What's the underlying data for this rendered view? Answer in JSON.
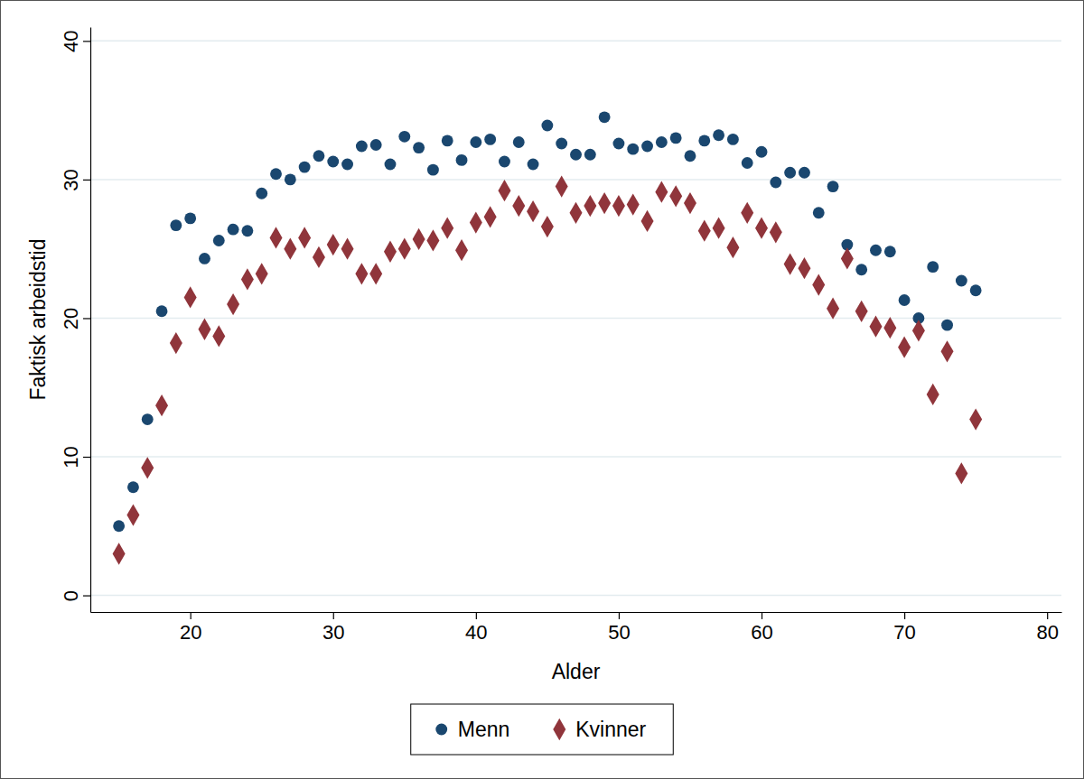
{
  "chart_data": {
    "type": "scatter",
    "x_label": "Alder",
    "y_label": "Faktisk arbeidstid",
    "x": [
      15,
      16,
      17,
      18,
      19,
      20,
      21,
      22,
      23,
      24,
      25,
      26,
      27,
      28,
      29,
      30,
      31,
      32,
      33,
      34,
      35,
      36,
      37,
      38,
      39,
      40,
      41,
      42,
      43,
      44,
      45,
      46,
      47,
      48,
      49,
      50,
      51,
      52,
      53,
      54,
      55,
      56,
      57,
      58,
      59,
      60,
      61,
      62,
      63,
      64,
      65,
      66,
      67,
      68,
      69,
      70,
      71,
      72,
      73,
      74,
      75
    ],
    "series": [
      {
        "name": "Menn",
        "color": "#1a476f",
        "marker": "circle",
        "values": [
          5.0,
          7.8,
          12.7,
          20.5,
          26.7,
          27.2,
          24.3,
          25.6,
          26.4,
          26.3,
          29.0,
          30.4,
          30.0,
          30.9,
          31.7,
          31.3,
          31.1,
          32.4,
          32.5,
          31.1,
          33.1,
          32.3,
          30.7,
          32.8,
          31.4,
          32.7,
          32.9,
          31.3,
          32.7,
          31.1,
          33.9,
          32.6,
          31.8,
          31.8,
          34.5,
          32.6,
          32.2,
          32.4,
          32.7,
          33.0,
          31.7,
          32.8,
          33.2,
          32.9,
          31.2,
          32.0,
          29.8,
          30.5,
          30.5,
          27.6,
          29.5,
          25.3,
          23.5,
          24.9,
          24.8,
          21.3,
          20.0,
          23.7,
          19.5,
          22.7,
          22.0
        ]
      },
      {
        "name": "Kvinner",
        "color": "#90353b",
        "marker": "diamond",
        "values": [
          3.0,
          5.8,
          9.2,
          13.7,
          18.2,
          21.5,
          19.2,
          18.7,
          21.0,
          22.8,
          23.2,
          25.8,
          25.0,
          25.8,
          24.4,
          25.3,
          25.0,
          23.2,
          23.2,
          24.8,
          25.0,
          25.7,
          25.6,
          26.5,
          24.9,
          26.9,
          27.3,
          29.2,
          28.1,
          27.7,
          26.6,
          29.5,
          27.6,
          28.1,
          28.3,
          28.1,
          28.2,
          27.0,
          29.1,
          28.8,
          28.3,
          26.3,
          26.5,
          25.1,
          27.6,
          26.5,
          26.2,
          23.9,
          23.6,
          22.4,
          20.7,
          24.3,
          20.5,
          19.4,
          19.3,
          17.9,
          19.1,
          14.5,
          17.6,
          8.8,
          12.7
        ]
      }
    ],
    "xlim": [
      13,
      81
    ],
    "xticks": [
      20,
      30,
      40,
      50,
      60,
      70,
      80
    ],
    "ylim": [
      -1.2,
      41
    ],
    "yticks": [
      0,
      10,
      20,
      30,
      40
    ],
    "grid": true,
    "legend": "bottom"
  }
}
